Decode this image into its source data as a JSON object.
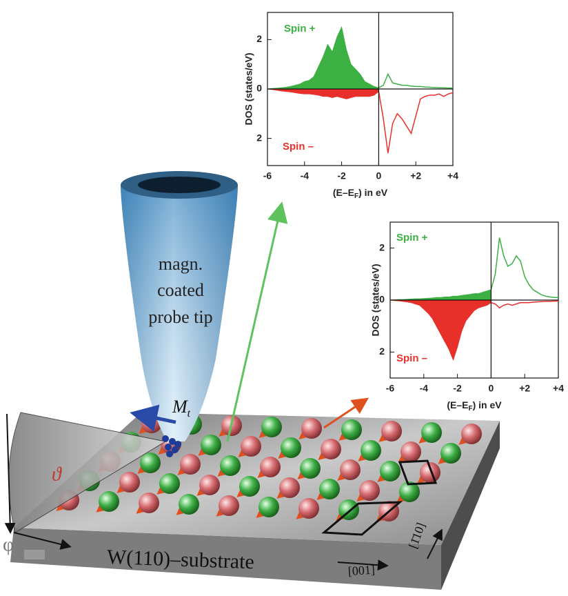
{
  "chart_data": [
    {
      "type": "area",
      "ylabel": "DOS (states/eV)",
      "xlabel": [
        "(E–E",
        "F",
        ") in eV"
      ],
      "x": [
        -6,
        -5.75,
        -5.5,
        -5.25,
        -5,
        -4.75,
        -4.5,
        -4.25,
        -4,
        -3.75,
        -3.5,
        -3.25,
        -3,
        -2.75,
        -2.5,
        -2.25,
        -2,
        -1.75,
        -1.5,
        -1.25,
        -1,
        -0.75,
        -0.5,
        -0.25,
        0,
        0.25,
        0.5,
        0.75,
        1,
        1.25,
        1.5,
        1.75,
        2,
        2.25,
        2.5,
        2.75,
        3,
        3.25,
        3.5,
        3.75,
        4
      ],
      "series": [
        {
          "name": "Spin +",
          "color": "#3cb043",
          "values": [
            0,
            0.02,
            0.03,
            0.05,
            0.07,
            0.1,
            0.15,
            0.2,
            0.3,
            0.35,
            0.5,
            0.9,
            1.3,
            1.8,
            1.5,
            2.1,
            2.5,
            1.6,
            1.0,
            0.8,
            0.6,
            0.3,
            0.2,
            0.1,
            0.05,
            0.15,
            0.6,
            0.25,
            0.2,
            0.15,
            0.15,
            0.12,
            0.1,
            0.1,
            0.08,
            0.07,
            0.06,
            0.05,
            0.05,
            0.04,
            0.04
          ]
        },
        {
          "name": "Spin –",
          "color": "#e8302a",
          "values": [
            0,
            -0.02,
            -0.05,
            -0.08,
            -0.1,
            -0.12,
            -0.15,
            -0.18,
            -0.2,
            -0.2,
            -0.22,
            -0.25,
            -0.3,
            -0.3,
            -0.35,
            -0.3,
            -0.35,
            -0.4,
            -0.35,
            -0.3,
            -0.3,
            -0.3,
            -0.3,
            -0.25,
            -0.1,
            -1.2,
            -2.6,
            -1.4,
            -1.0,
            -1.2,
            -1.5,
            -1.8,
            -1.1,
            -0.4,
            -0.3,
            -0.25,
            -0.25,
            -0.2,
            -0.3,
            -0.2,
            -0.15
          ]
        }
      ],
      "xlim": [
        -6,
        4
      ],
      "ylim": [
        -3.1,
        3.1
      ],
      "xticks": [
        -6,
        -4,
        -2,
        0,
        {
          "value": 2,
          "label": "+2"
        },
        {
          "value": 4,
          "label": "+4"
        }
      ],
      "yticks": [
        {
          "value": -2,
          "label": "2"
        },
        0,
        2
      ],
      "vline": 0
    },
    {
      "type": "area",
      "ylabel": "DOS (states/eV)",
      "xlabel": [
        "(E–E",
        "F",
        ") in eV"
      ],
      "x": [
        -6,
        -5.75,
        -5.5,
        -5.25,
        -5,
        -4.75,
        -4.5,
        -4.25,
        -4,
        -3.75,
        -3.5,
        -3.25,
        -3,
        -2.75,
        -2.5,
        -2.25,
        -2,
        -1.75,
        -1.5,
        -1.25,
        -1,
        -0.75,
        -0.5,
        -0.25,
        0,
        0.25,
        0.5,
        0.75,
        1,
        1.25,
        1.5,
        1.75,
        2,
        2.25,
        2.5,
        2.75,
        3,
        3.25,
        3.5,
        3.75,
        4
      ],
      "series": [
        {
          "name": "Spin +",
          "color": "#3cb043",
          "values": [
            0,
            0.01,
            0.02,
            0.02,
            0.03,
            0.04,
            0.05,
            0.05,
            0.06,
            0.07,
            0.08,
            0.1,
            0.1,
            0.12,
            0.12,
            0.15,
            0.15,
            0.18,
            0.2,
            0.22,
            0.25,
            0.25,
            0.3,
            0.35,
            0.4,
            1.0,
            2.4,
            1.7,
            1.3,
            1.4,
            1.7,
            1.5,
            0.9,
            0.6,
            0.4,
            0.3,
            0.2,
            0.15,
            0.12,
            0.1,
            0.1
          ]
        },
        {
          "name": "Spin –",
          "color": "#e8302a",
          "values": [
            0,
            -0.02,
            -0.03,
            -0.05,
            -0.07,
            -0.1,
            -0.15,
            -0.2,
            -0.35,
            -0.5,
            -0.7,
            -1.0,
            -1.3,
            -1.6,
            -1.9,
            -2.3,
            -1.8,
            -1.2,
            -0.8,
            -0.6,
            -0.4,
            -0.3,
            -0.25,
            -0.2,
            -0.1,
            -0.15,
            -0.3,
            -0.2,
            -0.15,
            -0.2,
            -0.15,
            -0.1,
            -0.1,
            -0.1,
            -0.08,
            -0.07,
            -0.06,
            -0.05,
            -0.05,
            -0.04,
            -0.04
          ]
        }
      ],
      "xlim": [
        -6,
        4
      ],
      "ylim": [
        -3,
        3
      ],
      "xticks": [
        -6,
        -4,
        -2,
        0,
        {
          "value": 2,
          "label": "+2"
        },
        {
          "value": 4,
          "label": "+4"
        }
      ],
      "yticks": [
        {
          "value": -2,
          "label": "2"
        },
        0,
        2
      ],
      "vline": 0
    }
  ],
  "illustration": {
    "tip_label": [
      "magn.",
      "coated",
      "probe tip"
    ],
    "moment": [
      "M",
      "t"
    ],
    "theta": "ϑ",
    "phi": "φ",
    "substrate": "W(110)–substrate",
    "direction_a": "[001]",
    "direction_b": "[1̄10]"
  }
}
